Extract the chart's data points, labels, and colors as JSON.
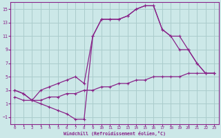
{
  "xlabel": "Windchill (Refroidissement éolien,°C)",
  "xlim": [
    -0.5,
    23.5
  ],
  "ylim": [
    -2,
    16
  ],
  "xticks": [
    0,
    1,
    2,
    3,
    4,
    5,
    6,
    7,
    8,
    9,
    10,
    11,
    12,
    13,
    14,
    15,
    16,
    17,
    18,
    19,
    20,
    21,
    22,
    23
  ],
  "yticks": [
    -1,
    1,
    3,
    5,
    7,
    9,
    11,
    13,
    15
  ],
  "bg_color": "#cce8e8",
  "grid_color": "#aacccc",
  "line_color": "#882288",
  "curve1_x": [
    0,
    1,
    2,
    3,
    4,
    5,
    6,
    7,
    8,
    9,
    10,
    11,
    12,
    13,
    14,
    15,
    16,
    17,
    18,
    19,
    20,
    21,
    22,
    23
  ],
  "curve1_y": [
    3.0,
    2.5,
    1.5,
    3.0,
    3.5,
    4.0,
    4.5,
    5.0,
    4.0,
    11.0,
    13.5,
    13.5,
    13.5,
    14.0,
    15.0,
    15.5,
    15.5,
    12.0,
    11.0,
    9.0,
    9.0,
    7.0,
    5.5,
    5.5
  ],
  "curve2_x": [
    0,
    1,
    2,
    3,
    4,
    5,
    6,
    7,
    8,
    9,
    10,
    11,
    12,
    13,
    14,
    15,
    16,
    17,
    18,
    19,
    20,
    21,
    22,
    23
  ],
  "curve2_y": [
    3.0,
    2.5,
    1.5,
    1.0,
    0.5,
    0.0,
    -0.5,
    -1.3,
    -1.3,
    11.0,
    13.5,
    13.5,
    13.5,
    14.0,
    15.0,
    15.5,
    15.5,
    12.0,
    11.0,
    11.0,
    9.0,
    7.0,
    5.5,
    5.5
  ],
  "curve3_x": [
    0,
    1,
    2,
    3,
    4,
    5,
    6,
    7,
    8,
    9,
    10,
    11,
    12,
    13,
    14,
    15,
    16,
    17,
    18,
    19,
    20,
    21,
    22,
    23
  ],
  "curve3_y": [
    2.0,
    1.5,
    1.5,
    1.5,
    2.0,
    2.0,
    2.5,
    2.5,
    3.0,
    3.0,
    3.5,
    3.5,
    4.0,
    4.0,
    4.5,
    4.5,
    5.0,
    5.0,
    5.0,
    5.0,
    5.5,
    5.5,
    5.5,
    5.5
  ]
}
